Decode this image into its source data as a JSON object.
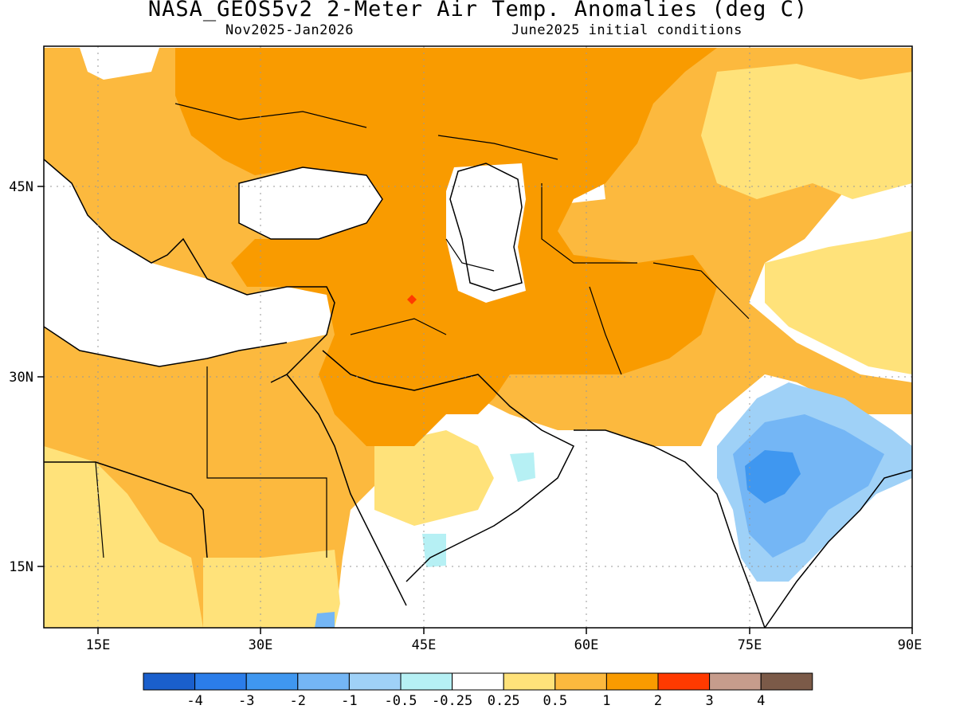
{
  "title": "NASA_GEOS5v2 2-Meter Air Temp. Anomalies (deg C)",
  "subtitle_left": "Nov2025-Jan2026",
  "subtitle_right": "June2025 initial conditions",
  "map": {
    "lon_range": [
      10,
      90
    ],
    "lat_range": [
      10,
      55
    ],
    "lon_ticks": [
      "15E",
      "30E",
      "45E",
      "60E",
      "75E",
      "90E"
    ],
    "lat_ticks": [
      "45N",
      "30N",
      "15N"
    ]
  },
  "colorbar": {
    "boundaries": [
      "-4",
      "-3",
      "-2",
      "-1",
      "-0.5",
      "-0.25",
      "0.25",
      "0.5",
      "1",
      "2",
      "3",
      "4"
    ],
    "colors": [
      "#1a5fcc",
      "#2b7de9",
      "#3f97f0",
      "#74b6f5",
      "#9fd1f7",
      "#b6f0f4",
      "#ffffff",
      "#ffe27a",
      "#fcb93e",
      "#f99b00",
      "#ff3a00",
      "#c69c8c",
      "#7b5a48"
    ]
  }
}
